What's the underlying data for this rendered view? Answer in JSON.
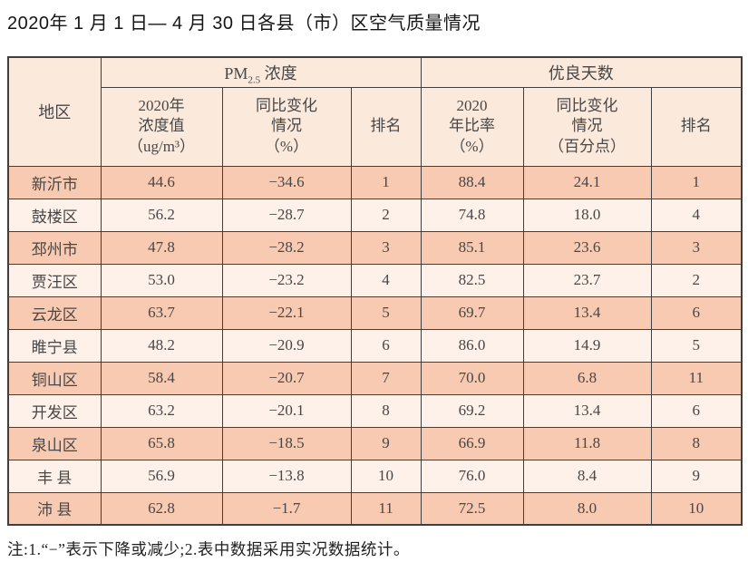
{
  "title": "2020年 1 月 1 日— 4 月 30 日各县（市）区空气质量情况",
  "table": {
    "region_header": "地区",
    "pm_group": {
      "prefix": "PM",
      "sub": "2.5",
      "suffix": " 浓度"
    },
    "good_group": "优良天数",
    "sub_headers": [
      [
        "2020年",
        "浓度值",
        "（ug/m³）"
      ],
      [
        "同比变化",
        "情况",
        "（%）"
      ],
      [
        "排名"
      ],
      [
        "2020",
        "年比率",
        "（%）"
      ],
      [
        "同比变化",
        "情况",
        "（百分点）"
      ],
      [
        "排名"
      ]
    ],
    "rows": [
      {
        "region": "新沂市",
        "pm_value": "44.6",
        "pm_change": "−34.6",
        "pm_rank": "1",
        "good_rate": "88.4",
        "good_change": "24.1",
        "good_rank": "1"
      },
      {
        "region": "鼓楼区",
        "pm_value": "56.2",
        "pm_change": "−28.7",
        "pm_rank": "2",
        "good_rate": "74.8",
        "good_change": "18.0",
        "good_rank": "4"
      },
      {
        "region": "邳州市",
        "pm_value": "47.8",
        "pm_change": "−28.2",
        "pm_rank": "3",
        "good_rate": "85.1",
        "good_change": "23.6",
        "good_rank": "3"
      },
      {
        "region": "贾汪区",
        "pm_value": "53.0",
        "pm_change": "−23.2",
        "pm_rank": "4",
        "good_rate": "82.5",
        "good_change": "23.7",
        "good_rank": "2"
      },
      {
        "region": "云龙区",
        "pm_value": "63.7",
        "pm_change": "−22.1",
        "pm_rank": "5",
        "good_rate": "69.7",
        "good_change": "13.4",
        "good_rank": "6"
      },
      {
        "region": "睢宁县",
        "pm_value": "48.2",
        "pm_change": "−20.9",
        "pm_rank": "6",
        "good_rate": "86.0",
        "good_change": "14.9",
        "good_rank": "5"
      },
      {
        "region": "铜山区",
        "pm_value": "58.4",
        "pm_change": "−20.7",
        "pm_rank": "7",
        "good_rate": "70.0",
        "good_change": "6.8",
        "good_rank": "11"
      },
      {
        "region": "开发区",
        "pm_value": "63.2",
        "pm_change": "−20.1",
        "pm_rank": "8",
        "good_rate": "69.2",
        "good_change": "13.4",
        "good_rank": "6"
      },
      {
        "region": "泉山区",
        "pm_value": "65.8",
        "pm_change": "−18.5",
        "pm_rank": "9",
        "good_rate": "66.9",
        "good_change": "11.8",
        "good_rank": "8"
      },
      {
        "region": "丰 县",
        "pm_value": "56.9",
        "pm_change": "−13.8",
        "pm_rank": "10",
        "good_rate": "76.0",
        "good_change": "8.4",
        "good_rank": "9"
      },
      {
        "region": "沛 县",
        "pm_value": "62.8",
        "pm_change": "−1.7",
        "pm_rank": "11",
        "good_rate": "72.5",
        "good_change": "8.0",
        "good_rank": "10"
      }
    ]
  },
  "note": "注:1.“−”表示下降或减少;2.表中数据采用实况数据统计。",
  "colors": {
    "header_bg": "#fbe9dc",
    "row_dark": "#f8cab1",
    "row_light": "#fdf1ea",
    "border": "#3f3f3f",
    "text": "#474747",
    "title_text": "#151515"
  }
}
